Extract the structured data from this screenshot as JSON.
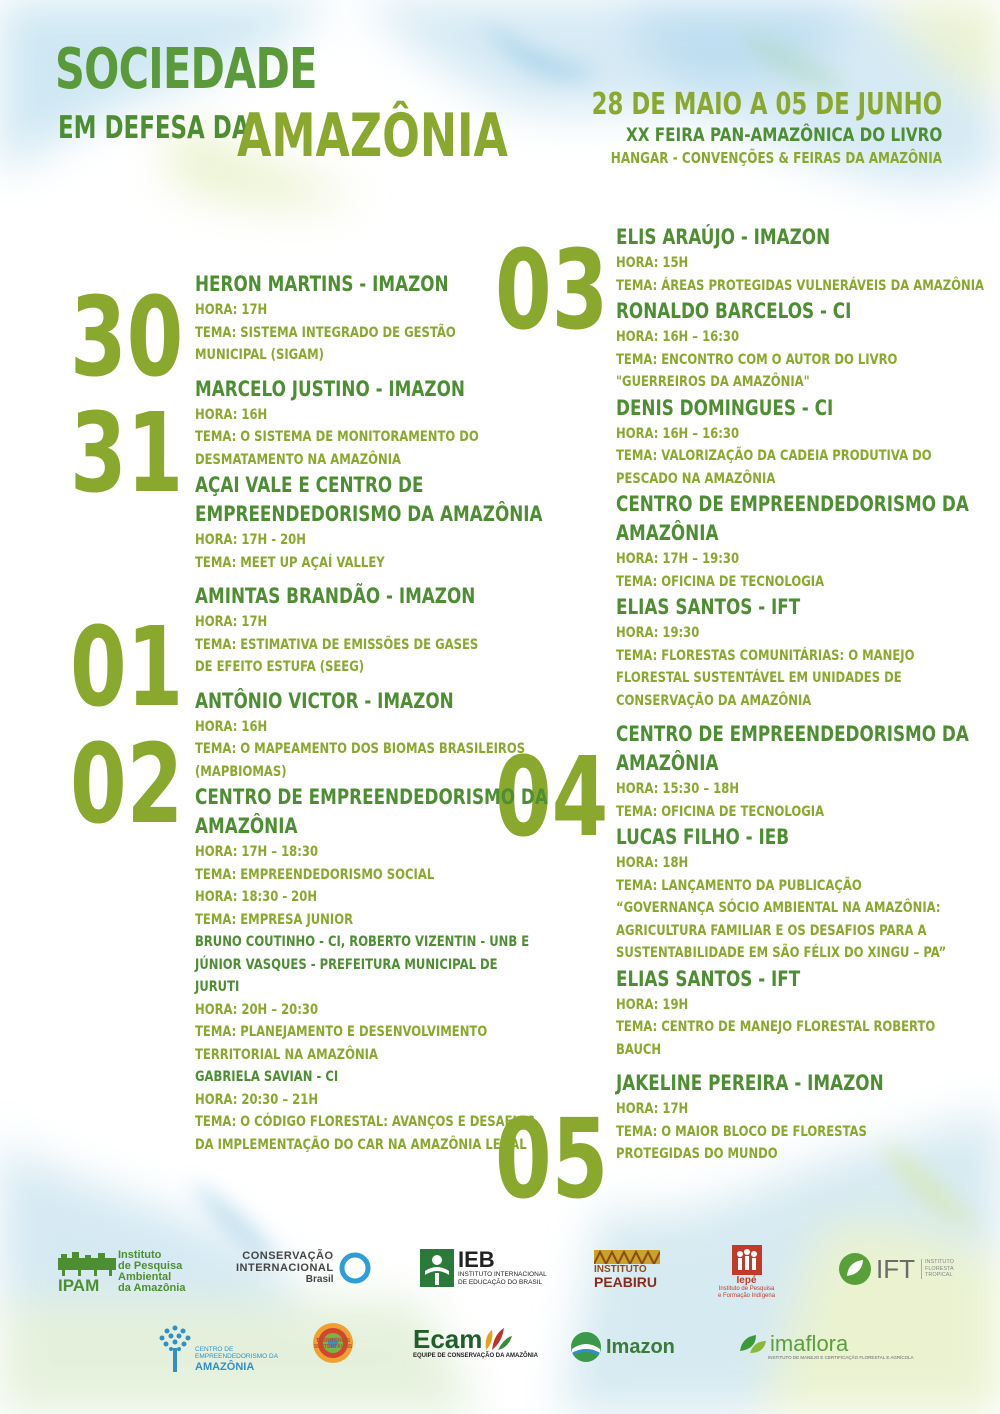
{
  "header": {
    "title_line1": "SOCIEDADE",
    "title_line2": "EM DEFESA DA",
    "title_line3": "AMAZÔNIA",
    "event_date": "28 DE MAIO A 05 DE JUNHO",
    "event_name": "XX FEIRA PAN-AMAZÔNICA DO LIVRO",
    "event_venue": "HANGAR - CONVENÇÕES & FEIRAS DA AMAZÔNIA"
  },
  "colors": {
    "dark_green": "#4e8e33",
    "olive_green": "#8aa82e",
    "title_green": "#5a9a3a"
  },
  "days": [
    "30",
    "31",
    "01",
    "02",
    "03",
    "04",
    "05"
  ],
  "left_column": [
    {
      "t": "s",
      "text": "HERON MARTINS - IMAZON"
    },
    {
      "t": "i",
      "text": "HORA: 17H"
    },
    {
      "t": "i",
      "text": "TEMA: SISTEMA INTEGRADO DE GESTÃO"
    },
    {
      "t": "i",
      "text": "MUNICIPAL (SIGAM)"
    },
    {
      "t": "g"
    },
    {
      "t": "s",
      "text": "MARCELO JUSTINO - IMAZON"
    },
    {
      "t": "i",
      "text": "HORA: 16H"
    },
    {
      "t": "i",
      "text": "TEMA: O SISTEMA  DE MONITORAMENTO DO"
    },
    {
      "t": "i",
      "text": "DESMATAMENTO NA AMAZÔNIA"
    },
    {
      "t": "s",
      "text": "AÇAI VALE E CENTRO DE"
    },
    {
      "t": "s",
      "text": "EMPREENDEDORISMO DA AMAZÔNIA"
    },
    {
      "t": "i",
      "text": "HORA: 17H - 20H"
    },
    {
      "t": "i",
      "text": "TEMA: MEET UP AÇAÍ VALLEY"
    },
    {
      "t": "g"
    },
    {
      "t": "s",
      "text": "AMINTAS BRANDÃO - IMAZON"
    },
    {
      "t": "i",
      "text": "HORA: 17H"
    },
    {
      "t": "i",
      "text": "TEMA: ESTIMATIVA DE EMISSÕES DE GASES"
    },
    {
      "t": "i",
      "text": "DE EFEITO ESTUFA (SEEG)"
    },
    {
      "t": "g"
    },
    {
      "t": "s",
      "text": "ANTÔNIO VICTOR - IMAZON"
    },
    {
      "t": "i",
      "text": "HORA: 16H"
    },
    {
      "t": "i",
      "text": "TEMA: O MAPEAMENTO DOS BIOMAS BRASILEIROS"
    },
    {
      "t": "i",
      "text": "(MAPBIOMAS)"
    },
    {
      "t": "s",
      "text": "CENTRO DE EMPREENDEDORISMO DA"
    },
    {
      "t": "s",
      "text": "AMAZÔNIA"
    },
    {
      "t": "i",
      "text": "HORA: 17H – 18:30"
    },
    {
      "t": "i",
      "text": "TEMA: EMPREENDEDORISMO SOCIAL"
    },
    {
      "t": "i",
      "text": "HORA: 18:30 - 20H"
    },
    {
      "t": "i",
      "text": "TEMA: EMPRESA JUNIOR"
    },
    {
      "t": "p",
      "text": "BRUNO COUTINHO - CI, ROBERTO VIZENTIN - UNB E"
    },
    {
      "t": "p",
      "text": "JÚNIOR VASQUES - PREFEITURA MUNICIPAL DE"
    },
    {
      "t": "p",
      "text": "JURUTI"
    },
    {
      "t": "i",
      "text": "HORA: 20H – 20:30"
    },
    {
      "t": "i",
      "text": "TEMA: PLANEJAMENTO E DESENVOLVIMENTO"
    },
    {
      "t": "i",
      "text": "TERRITORIAL NA AMAZÔNIA"
    },
    {
      "t": "p",
      "text": "GABRIELA SAVIAN - CI"
    },
    {
      "t": "i",
      "text": "HORA: 20:30 – 21H"
    },
    {
      "t": "i",
      "text": "TEMA: O CÓDIGO FLORESTAL: AVANÇOS E DESAFIOS"
    },
    {
      "t": "i",
      "text": "DA IMPLEMENTAÇÃO DO CAR NA AMAZÔNIA LEGAL"
    }
  ],
  "right_column": [
    {
      "t": "s",
      "text": "ELIS ARAÚJO - IMAZON"
    },
    {
      "t": "i",
      "text": "HORA: 15H"
    },
    {
      "t": "i",
      "text": "TEMA: ÁREAS PROTEGIDAS VULNERÁVEIS DA AMAZÔNIA"
    },
    {
      "t": "s",
      "text": "RONALDO BARCELOS - CI"
    },
    {
      "t": "i",
      "text": "HORA: 16H – 16:30"
    },
    {
      "t": "i",
      "text": "TEMA: ENCONTRO COM O AUTOR DO LIVRO"
    },
    {
      "t": "i",
      "text": "\"GUERREIROS DA AMAZÔNIA\""
    },
    {
      "t": "s",
      "text": "DENIS DOMINGUES - CI"
    },
    {
      "t": "i",
      "text": "HORA: 16H – 16:30"
    },
    {
      "t": "i",
      "text": "TEMA: VALORIZAÇÃO DA CADEIA PRODUTIVA DO"
    },
    {
      "t": "i",
      "text": "PESCADO NA AMAZÔNIA"
    },
    {
      "t": "s",
      "text": "CENTRO DE EMPREENDEDORISMO DA"
    },
    {
      "t": "s",
      "text": "AMAZÔNIA"
    },
    {
      "t": "i",
      "text": "HORA: 17H – 19:30"
    },
    {
      "t": "i",
      "text": "TEMA: OFICINA DE TECNOLOGIA"
    },
    {
      "t": "s",
      "text": "ELIAS SANTOS - IFT"
    },
    {
      "t": "i",
      "text": "HORA: 19:30"
    },
    {
      "t": "i",
      "text": "TEMA: FLORESTAS COMUNITÁRIAS: O MANEJO"
    },
    {
      "t": "i",
      "text": "FLORESTAL SUSTENTÁVEL EM UNIDADES DE"
    },
    {
      "t": "i",
      "text": "CONSERVAÇÃO DA AMAZÔNIA"
    },
    {
      "t": "g"
    },
    {
      "t": "s",
      "text": "CENTRO DE EMPREENDEDORISMO DA"
    },
    {
      "t": "s",
      "text": "AMAZÔNIA"
    },
    {
      "t": "i",
      "text": "HORA: 15:30 – 18H"
    },
    {
      "t": "i",
      "text": "TEMA: OFICINA DE TECNOLOGIA"
    },
    {
      "t": "s",
      "text": "LUCAS FILHO - IEB"
    },
    {
      "t": "i",
      "text": "HORA: 18H"
    },
    {
      "t": "i",
      "text": "TEMA: LANÇAMENTO DA PUBLICAÇÃO"
    },
    {
      "t": "i",
      "text": "“GOVERNANÇA SÓCIO AMBIENTAL NA AMAZÔNIA:"
    },
    {
      "t": "i",
      "text": "AGRICULTURA FAMILIAR E OS DESAFIOS PARA A"
    },
    {
      "t": "i",
      "text": "SUSTENTABILIDADE EM SÃO FÉLIX DO XINGU – PA”"
    },
    {
      "t": "s",
      "text": "ELIAS SANTOS - IFT"
    },
    {
      "t": "i",
      "text": "HORA: 19H"
    },
    {
      "t": "i",
      "text": "TEMA: CENTRO DE MANEJO FLORESTAL ROBERTO"
    },
    {
      "t": "i",
      "text": "BAUCH"
    },
    {
      "t": "g"
    },
    {
      "t": "s",
      "text": "JAKELINE PEREIRA - IMAZON"
    },
    {
      "t": "i",
      "text": "HORA: 17H"
    },
    {
      "t": "i",
      "text": "TEMA: O MAIOR BLOCO DE FLORESTAS"
    },
    {
      "t": "i",
      "text": "PROTEGIDAS DO MUNDO"
    }
  ],
  "logos": {
    "ipam": {
      "name": "IPAM",
      "text1": "Instituto",
      "text2": "de Pesquisa",
      "text3": "Ambiental",
      "text4": "da Amazônia"
    },
    "ci": {
      "line1": "CONSERVAÇÃO",
      "line2": "INTERNACIONAL",
      "line3": "Brasil"
    },
    "ieb": {
      "name": "IEB",
      "line1": "INSTITUTO INTERNACIONAL",
      "line2": "DE EDUCAÇÃO DO BRASIL"
    },
    "peabiru": {
      "line1": "INSTITUTO",
      "line2": "PEABIRU"
    },
    "iepe": {
      "name": "Iepé",
      "line1": "Instituto de Pesquisa",
      "line2": "e Formação Indígena"
    },
    "ift": {
      "name": "IFT",
      "line1": "INSTITUTO",
      "line2": "FLORESTA",
      "line3": "TROPICAL"
    },
    "centro": {
      "line1": "CENTRO DE",
      "line2": "EMPREENDEDORISMO DA",
      "line3": "AMAZÔNIA"
    },
    "territorios": {
      "line1": "TERRITÓRIOS",
      "line2": "SUSTENTÁVEIS"
    },
    "ecam": {
      "name": "Ecam",
      "line1": "EQUIPE DE CONSERVAÇÃO DA AMAZÔNIA"
    },
    "imazon": {
      "name": "Imazon"
    },
    "imaflora": {
      "name": "imaflora",
      "line1": "INSTITUTO DE MANEJO E CERTIFICAÇÃO FLORESTAL E AGRÍCOLA"
    }
  }
}
